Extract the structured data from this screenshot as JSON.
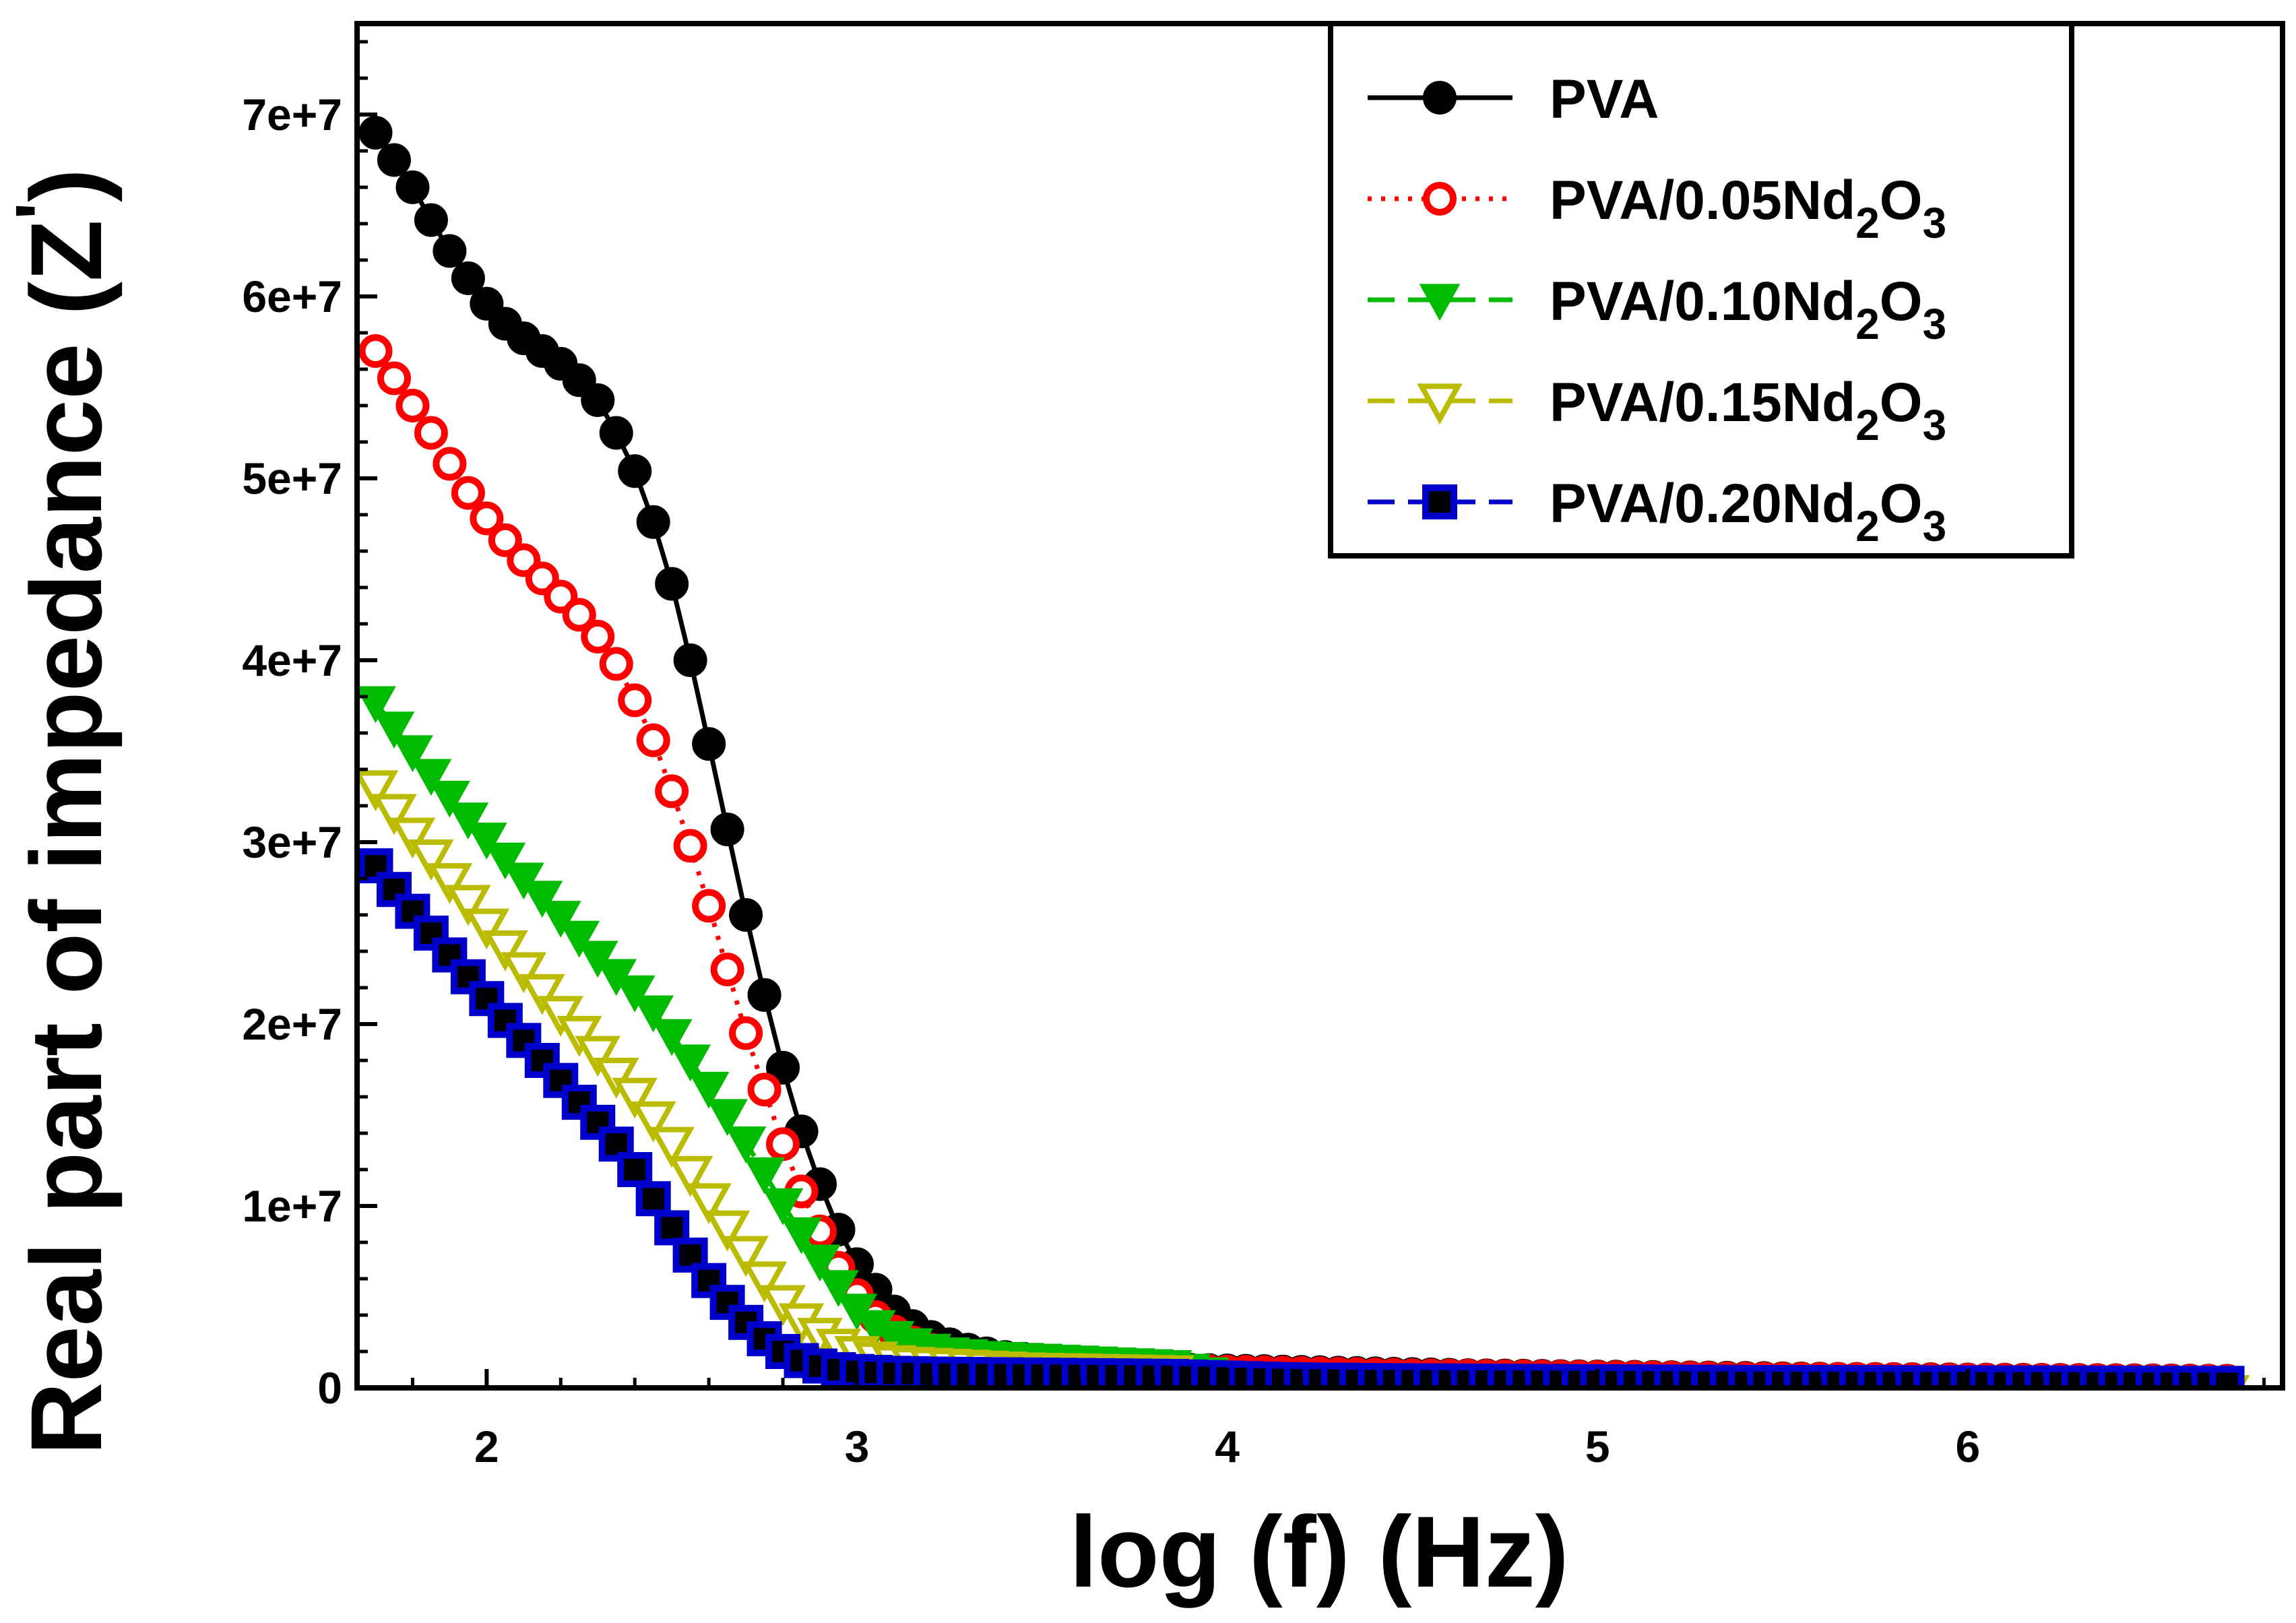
{
  "chart_data": {
    "type": "line",
    "title": "",
    "xlabel": "log (f) (Hz)",
    "ylabel": "Real part of impedance",
    "ylabel_symbol": "Z",
    "ylabel_prime": "'",
    "xlim": [
      1.65,
      6.85
    ],
    "ylim": [
      0,
      75000000
    ],
    "x_ticks": [
      2,
      3,
      4,
      5,
      6
    ],
    "x_tick_labels": [
      "2",
      "3",
      "4",
      "5",
      "6"
    ],
    "y_ticks": [
      0,
      10000000,
      20000000,
      30000000,
      40000000,
      50000000,
      60000000,
      70000000
    ],
    "y_tick_labels": [
      "0",
      "1e+7",
      "2e+7",
      "3e+7",
      "4e+7",
      "5e+7",
      "6e+7",
      "7e+7"
    ],
    "x_points": {
      "start": 1.7,
      "step": 0.05,
      "count": 101
    },
    "series": [
      {
        "name": "PVA",
        "legend_main": "PVA",
        "legend_sub": "",
        "legend_tail": "",
        "color": "#000000",
        "marker": "filled-circle",
        "line": "solid",
        "values": [
          69000000,
          67500000,
          66000000,
          64200000,
          62500000,
          61000000,
          59600000,
          58500000,
          57700000,
          57000000,
          56300000,
          55400000,
          54300000,
          52500000,
          50400000,
          47600000,
          44200000,
          40000000,
          35400000,
          30700000,
          26000000,
          21600000,
          17600000,
          14100000,
          11200000,
          8700000,
          6800000,
          5400000,
          4200000,
          3400000,
          2800000,
          2400000,
          2100000,
          1900000,
          1700000,
          1600000,
          1500000,
          1400000,
          1300000,
          1250000,
          1200000,
          1150000,
          1100000,
          1050000,
          1000000,
          980000,
          960000,
          940000,
          920000,
          900000,
          880000,
          860000,
          840000,
          820000,
          800000,
          780000,
          760000,
          740000,
          720000,
          700000,
          690000,
          680000,
          670000,
          660000,
          650000,
          640000,
          630000,
          620000,
          610000,
          600000,
          590000,
          580000,
          570000,
          560000,
          550000,
          540000,
          530000,
          520000,
          510000,
          500000,
          495000,
          490000,
          485000,
          480000,
          475000,
          470000,
          465000,
          460000,
          455000,
          450000,
          445000,
          440000,
          435000,
          430000,
          425000,
          420000,
          415000,
          410000,
          405000,
          400000,
          395000
        ]
      },
      {
        "name": "PVA/0.05Nd2O3",
        "legend_main": "PVA/0.05Nd",
        "legend_sub": "2",
        "legend_tail": "O",
        "legend_sub2": "3",
        "color": "#ff0000",
        "marker": "open-circle",
        "line": "dotted",
        "values": [
          57000000,
          55500000,
          54000000,
          52500000,
          50800000,
          49200000,
          47800000,
          46600000,
          45500000,
          44500000,
          43500000,
          42500000,
          41300000,
          39800000,
          37800000,
          35600000,
          32800000,
          29800000,
          26500000,
          23000000,
          19500000,
          16400000,
          13400000,
          10800000,
          8600000,
          6600000,
          5100000,
          3900000,
          3100000,
          2500000,
          2100000,
          1800000,
          1600000,
          1500000,
          1400000,
          1300000,
          1250000,
          1200000,
          1150000,
          1100000,
          1050000,
          1000000,
          980000,
          960000,
          940000,
          920000,
          900000,
          880000,
          860000,
          840000,
          820000,
          800000,
          780000,
          760000,
          740000,
          720000,
          700000,
          690000,
          680000,
          670000,
          660000,
          650000,
          640000,
          630000,
          620000,
          610000,
          600000,
          590000,
          580000,
          570000,
          560000,
          550000,
          540000,
          530000,
          520000,
          510000,
          500000,
          495000,
          490000,
          485000,
          480000,
          475000,
          470000,
          465000,
          460000,
          455000,
          450000,
          445000,
          440000,
          435000,
          430000,
          425000,
          420000,
          415000,
          410000,
          405000,
          400000,
          395000,
          390000,
          385000,
          380000
        ]
      },
      {
        "name": "PVA/0.10Nd2O3",
        "legend_main": "PVA/0.10Nd",
        "legend_sub": "2",
        "legend_tail": "O",
        "legend_sub2": "3",
        "color": "#00bb00",
        "marker": "filled-triangle-down",
        "line": "dashed",
        "values": [
          37700000,
          36300000,
          35000000,
          33700000,
          32500000,
          31300000,
          30200000,
          29100000,
          28000000,
          27000000,
          25900000,
          24800000,
          23700000,
          22700000,
          21800000,
          20700000,
          19400000,
          18000000,
          16500000,
          15000000,
          13500000,
          11800000,
          10100000,
          8500000,
          7000000,
          5600000,
          4300000,
          3400000,
          2800000,
          2400000,
          2100000,
          1900000,
          1800000,
          1700000,
          1650000,
          1600000,
          1550000,
          1500000,
          1450000,
          1400000,
          1350000,
          1300000,
          1250000,
          1200000,
          1000000,
          800000,
          600000,
          400000,
          200000,
          50000,
          -200000,
          -250000,
          -250000,
          -250000,
          -250000,
          -250000,
          -250000,
          -250000,
          -250000,
          -250000,
          -250000,
          -250000,
          -250000,
          -250000,
          -250000,
          -250000,
          -250000,
          -250000,
          -250000,
          -250000,
          -250000,
          -250000,
          -250000,
          -250000,
          -250000,
          -250000,
          -250000,
          -250000,
          -250000,
          -250000,
          -250000,
          -250000,
          -250000,
          -250000,
          -250000,
          -250000,
          -250000,
          -250000,
          -250000,
          -250000,
          -250000,
          -250000,
          -250000,
          -250000,
          -250000,
          -250000,
          -250000,
          -250000,
          -250000,
          -250000,
          -250000
        ]
      },
      {
        "name": "PVA/0.15Nd2O3",
        "legend_main": "PVA/0.15Nd",
        "legend_sub": "2",
        "legend_tail": "O",
        "legend_sub2": "3",
        "color": "#bbbb00",
        "marker": "open-triangle-down",
        "line": "dashed",
        "values": [
          33000000,
          31700000,
          30400000,
          29200000,
          27900000,
          26700000,
          25400000,
          24200000,
          23000000,
          21800000,
          20600000,
          19500000,
          18400000,
          17200000,
          16100000,
          14800000,
          13400000,
          11800000,
          10300000,
          8800000,
          7400000,
          6000000,
          4700000,
          3700000,
          2900000,
          2300000,
          1900000,
          1600000,
          1400000,
          1300000,
          1250000,
          1200000,
          1150000,
          1100000,
          1050000,
          1000000,
          980000,
          960000,
          940000,
          920000,
          900000,
          880000,
          860000,
          840000,
          600000,
          400000,
          200000,
          50000,
          -200000,
          -250000,
          -250000,
          -250000,
          -250000,
          -250000,
          -250000,
          -250000,
          -250000,
          -250000,
          -250000,
          -250000,
          -250000,
          -250000,
          -250000,
          -250000,
          -250000,
          -250000,
          -250000,
          -250000,
          -250000,
          -250000,
          -250000,
          -250000,
          -250000,
          -250000,
          -250000,
          -250000,
          -250000,
          -250000,
          -250000,
          -250000,
          -250000,
          -250000,
          -250000,
          -250000,
          -250000,
          -250000,
          -250000,
          -250000,
          -250000,
          -250000,
          -250000,
          -250000,
          -250000,
          -250000,
          -250000,
          -250000,
          -250000,
          -250000,
          -250000,
          -250000,
          -250000
        ]
      },
      {
        "name": "PVA/0.20Nd2O3",
        "legend_main": "PVA/0.20Nd",
        "legend_sub": "2",
        "legend_tail": "O",
        "legend_sub2": "3",
        "color": "#0000cc",
        "marker": "filled-square",
        "line": "dashed",
        "values": [
          28700000,
          27400000,
          26200000,
          25000000,
          23800000,
          22600000,
          21400000,
          20200000,
          19100000,
          18000000,
          16900000,
          15700000,
          14600000,
          13400000,
          12000000,
          10400000,
          8800000,
          7300000,
          5900000,
          4700000,
          3600000,
          2700000,
          2000000,
          1500000,
          1200000,
          1000000,
          900000,
          850000,
          800000,
          780000,
          760000,
          750000,
          740000,
          730000,
          720000,
          710000,
          700000,
          690000,
          680000,
          670000,
          660000,
          650000,
          640000,
          630000,
          600000,
          570000,
          540000,
          510000,
          480000,
          460000,
          440000,
          430000,
          420000,
          410000,
          400000,
          395000,
          390000,
          385000,
          380000,
          375000,
          370000,
          365000,
          360000,
          355000,
          350000,
          345000,
          340000,
          335000,
          330000,
          325000,
          320000,
          315000,
          310000,
          305000,
          300000,
          298000,
          296000,
          294000,
          292000,
          290000,
          288000,
          286000,
          284000,
          282000,
          280000,
          278000,
          276000,
          274000,
          272000,
          270000,
          268000,
          266000,
          264000,
          262000,
          260000,
          258000,
          256000,
          254000,
          252000,
          250000,
          248000
        ]
      }
    ]
  }
}
